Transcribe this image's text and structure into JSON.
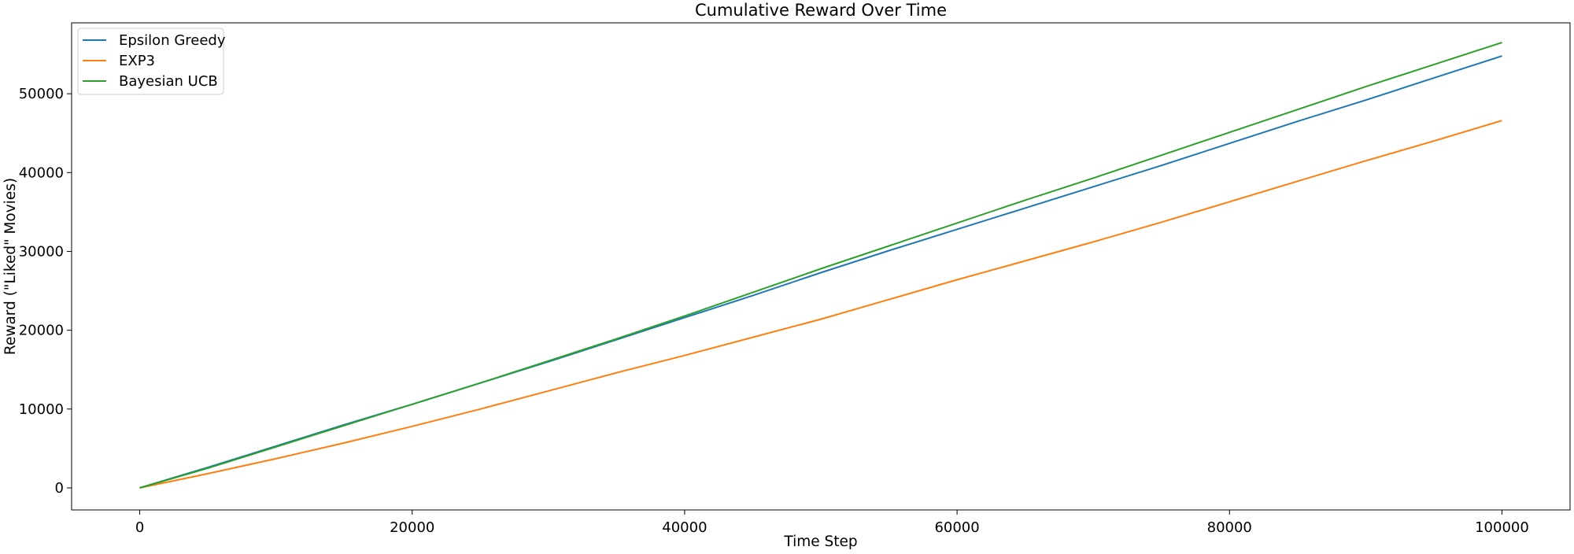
{
  "chart_data": {
    "type": "line",
    "title": "Cumulative Reward Over Time",
    "xlabel": "Time Step",
    "ylabel": "Reward (\"Liked\" Movies)",
    "xlim": [
      -5000,
      105000
    ],
    "ylim": [
      -2800,
      59000
    ],
    "xticks": [
      0,
      20000,
      40000,
      60000,
      80000,
      100000
    ],
    "yticks": [
      0,
      10000,
      20000,
      30000,
      40000,
      50000
    ],
    "grid": false,
    "legend_position": "top-left",
    "series": [
      {
        "name": "Epsilon Greedy",
        "color": "#1f77b4",
        "x": [
          0,
          5000,
          10000,
          15000,
          20000,
          25000,
          30000,
          35000,
          40000,
          45000,
          50000,
          55000,
          60000,
          65000,
          70000,
          75000,
          80000,
          85000,
          90000,
          95000,
          100000
        ],
        "values": [
          0,
          2600,
          5300,
          8000,
          10600,
          13300,
          16000,
          18800,
          21600,
          24400,
          27300,
          30100,
          32800,
          35500,
          38200,
          40900,
          43700,
          46500,
          49200,
          52000,
          54800
        ]
      },
      {
        "name": "EXP3",
        "color": "#ff7f0e",
        "x": [
          0,
          5000,
          10000,
          15000,
          20000,
          25000,
          30000,
          35000,
          40000,
          45000,
          50000,
          55000,
          60000,
          65000,
          70000,
          75000,
          80000,
          85000,
          90000,
          95000,
          100000
        ],
        "values": [
          0,
          1800,
          3700,
          5700,
          7800,
          10000,
          12300,
          14600,
          16800,
          19100,
          21400,
          23900,
          26400,
          28800,
          31200,
          33700,
          36300,
          38900,
          41500,
          44000,
          46600
        ]
      },
      {
        "name": "Bayesian UCB",
        "color": "#2ca02c",
        "x": [
          0,
          5000,
          10000,
          15000,
          20000,
          25000,
          30000,
          35000,
          40000,
          45000,
          50000,
          55000,
          60000,
          65000,
          70000,
          75000,
          80000,
          85000,
          90000,
          95000,
          100000
        ],
        "values": [
          0,
          2500,
          5200,
          7900,
          10600,
          13300,
          16100,
          18900,
          21800,
          24800,
          27800,
          30700,
          33600,
          36500,
          39300,
          42200,
          45100,
          48000,
          50900,
          53700,
          56500
        ]
      }
    ]
  }
}
